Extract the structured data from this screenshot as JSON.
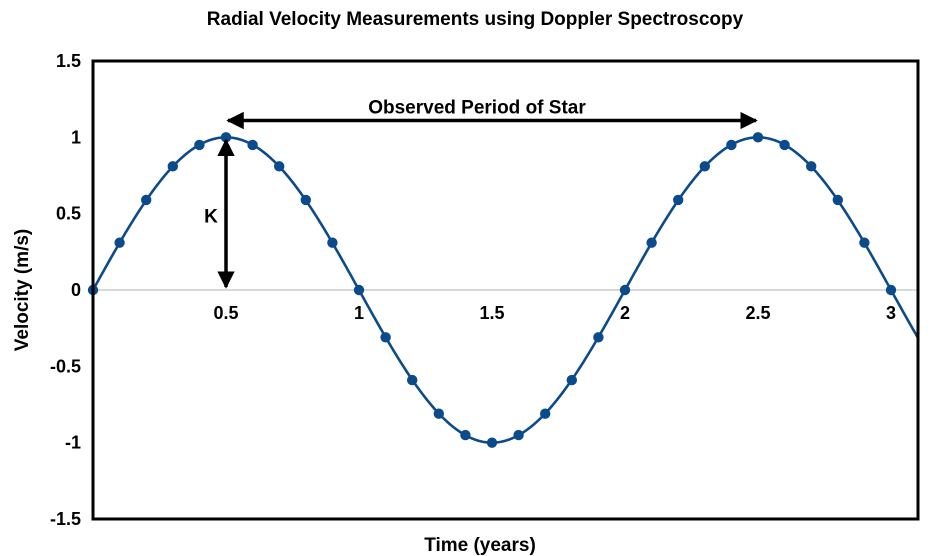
{
  "chart_data": {
    "type": "line",
    "title": "Radial Velocity Measurements using Doppler Spectroscopy",
    "xlabel": "Time (years)",
    "ylabel": "Velocity (m/s)",
    "xlim": [
      -0.05,
      3.1
    ],
    "ylim": [
      -1.5,
      1.5
    ],
    "x_ticks": [
      0.5,
      1,
      1.5,
      2,
      2.5,
      3
    ],
    "x_tick_labels": [
      "0.5",
      "1",
      "1.5",
      "2",
      "2.5",
      "3"
    ],
    "y_ticks": [
      1.5,
      1,
      0.5,
      0,
      -0.5,
      -1,
      -1.5
    ],
    "y_tick_labels": [
      "1.5",
      "1",
      "0.5",
      "0",
      "-0.5",
      "-1",
      "-1.5"
    ],
    "grid": false,
    "zero_line": true,
    "series": [
      {
        "color": "#0b4a8b",
        "x": [
          0,
          0.1,
          0.2,
          0.3,
          0.4,
          0.5,
          0.6,
          0.7,
          0.8,
          0.9,
          1.0,
          1.1,
          1.2,
          1.3,
          1.4,
          1.5,
          1.6,
          1.7,
          1.8,
          1.9,
          2.0,
          2.1,
          2.2,
          2.3,
          2.4,
          2.5,
          2.6,
          2.7,
          2.8,
          2.9,
          3.0
        ],
        "y": [
          0,
          0.31,
          0.59,
          0.81,
          0.95,
          1.0,
          0.95,
          0.81,
          0.59,
          0.31,
          0,
          -0.31,
          -0.59,
          -0.81,
          -0.95,
          -1.0,
          -0.95,
          -0.81,
          -0.59,
          -0.31,
          0,
          0.31,
          0.59,
          0.81,
          0.95,
          1.0,
          0.95,
          0.81,
          0.59,
          0.31,
          0
        ]
      }
    ],
    "curve": {
      "type": "sine",
      "amplitude": 1,
      "period": 2,
      "x_end": 3.1
    },
    "annotations": {
      "period_label": "Observed Period of Star",
      "period_arrow": {
        "x_start": 0.5,
        "x_end": 2.5,
        "y": 1.11
      },
      "amplitude_label": "K",
      "amplitude_arrow": {
        "x": 0.5,
        "y_start": 0,
        "y_end": 1.0
      }
    }
  }
}
